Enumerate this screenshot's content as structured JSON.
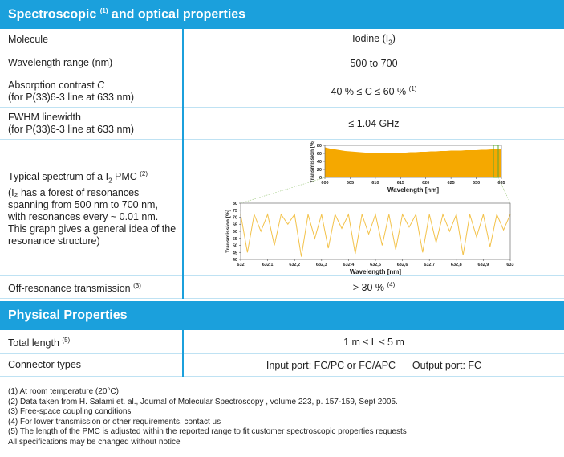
{
  "sections": [
    {
      "title": [
        {
          "text": "Spectroscopic "
        },
        {
          "text": "(1)",
          "style": "sup"
        },
        {
          "text": " and optical properties"
        }
      ],
      "rows": [
        {
          "label": [
            [
              {
                "text": "Molecule"
              }
            ]
          ],
          "value": [
            [
              {
                "text": "Iodine (I"
              },
              {
                "text": "2",
                "style": "sub"
              },
              {
                "text": ")"
              }
            ]
          ]
        },
        {
          "label": [
            [
              {
                "text": "Wavelength range (nm)"
              }
            ]
          ],
          "value": [
            [
              {
                "text": "500 to 700"
              }
            ]
          ]
        },
        {
          "label": [
            [
              {
                "text": "Absorption contrast "
              },
              {
                "text": "C",
                "style": "italic"
              }
            ],
            [
              {
                "text": "(for P(33)6-3 line at 633 nm)"
              }
            ]
          ],
          "value": [
            [
              {
                "text": "40 % ≤ C ≤ 60 % "
              },
              {
                "text": "(1)",
                "style": "sup"
              }
            ]
          ]
        },
        {
          "label": [
            [
              {
                "text": "FWHM linewidth"
              }
            ],
            [
              {
                "text": "(for P(33)6-3 line at 633 nm)"
              }
            ]
          ],
          "value": [
            [
              {
                "text": "≤ 1.04 GHz"
              }
            ]
          ]
        },
        {
          "label": [
            [
              {
                "text": "Typical spectrum of a I"
              },
              {
                "text": "2",
                "style": "sub"
              },
              {
                "text": " PMC "
              },
              {
                "text": "(2)",
                "style": "sup"
              }
            ],
            [
              {
                "text": "(I₂ has a forest of resonances"
              }
            ],
            [
              {
                "text": "spanning from 500 nm to 700 nm,"
              }
            ],
            [
              {
                "text": "with resonances every ~ 0.01 nm."
              }
            ],
            [
              {
                "text": "This graph gives a general idea of the"
              }
            ],
            [
              {
                "text": "resonance structure)"
              }
            ]
          ]
        },
        {
          "label": [
            [
              {
                "text": "Off-resonance transmission "
              },
              {
                "text": "(3)",
                "style": "sup"
              }
            ]
          ],
          "value": [
            [
              {
                "text": "> 30 % "
              },
              {
                "text": "(4)",
                "style": "sup"
              }
            ]
          ]
        }
      ]
    },
    {
      "title": [
        {
          "text": "Physical Properties"
        }
      ],
      "rows": [
        {
          "label": [
            [
              {
                "text": "Total length "
              },
              {
                "text": "(5)",
                "style": "sup"
              }
            ]
          ],
          "value": [
            [
              {
                "text": "1 m ≤ L ≤ 5 m"
              }
            ]
          ]
        },
        {
          "label": [
            [
              {
                "text": "Connector types"
              }
            ]
          ],
          "value": [
            [
              {
                "text": "Input port: FC/PC or FC/APC      Output port: FC"
              }
            ]
          ]
        }
      ]
    }
  ],
  "chart_data": [
    {
      "type": "area",
      "xlabel": "Wavelength [nm]",
      "ylabel": "Transmission [%]",
      "color": "#f5a800",
      "x": [
        600,
        601,
        602,
        603,
        604,
        605,
        606,
        607,
        608,
        609,
        610,
        611,
        612,
        613,
        614,
        615,
        616,
        617,
        618,
        619,
        620,
        621,
        622,
        623,
        624,
        625,
        626,
        627,
        628,
        629,
        630,
        631,
        632,
        633,
        634,
        635
      ],
      "values": [
        75,
        72,
        70,
        68,
        66,
        65,
        64,
        63,
        62,
        61,
        60,
        60,
        60,
        61,
        61,
        62,
        62,
        63,
        63,
        64,
        64,
        65,
        65,
        66,
        66,
        67,
        67,
        67,
        68,
        68,
        68,
        69,
        69,
        70,
        70,
        70
      ],
      "xlim": [
        600,
        635
      ],
      "ylim": [
        0,
        80
      ],
      "xticks": [
        600,
        605,
        610,
        615,
        620,
        625,
        630,
        635
      ],
      "yticks": [
        0,
        20,
        40,
        60,
        80
      ]
    },
    {
      "type": "line",
      "xlabel": "Wavelength [nm]",
      "ylabel": "Transmission [%]",
      "color": "#f3c24a",
      "x": [
        632,
        632.025,
        632.05,
        632.075,
        632.1,
        632.125,
        632.15,
        632.175,
        632.2,
        632.225,
        632.25,
        632.275,
        632.3,
        632.325,
        632.35,
        632.375,
        632.4,
        632.425,
        632.45,
        632.475,
        632.5,
        632.525,
        632.55,
        632.575,
        632.6,
        632.625,
        632.65,
        632.675,
        632.7,
        632.725,
        632.75,
        632.775,
        632.8,
        632.825,
        632.85,
        632.875,
        632.9,
        632.925,
        632.95,
        632.975,
        633
      ],
      "values": [
        72,
        45,
        72,
        60,
        72,
        50,
        72,
        65,
        72,
        42,
        72,
        55,
        72,
        48,
        72,
        62,
        72,
        44,
        72,
        58,
        72,
        50,
        72,
        47,
        72,
        63,
        72,
        45,
        72,
        52,
        72,
        60,
        72,
        43,
        72,
        56,
        72,
        49,
        72,
        61,
        72
      ],
      "xlim": [
        632,
        633
      ],
      "ylim": [
        40,
        80
      ],
      "xticks": [
        632,
        {
          "value": 632.1,
          "label": "632,1"
        },
        {
          "value": 632.2,
          "label": "632,2"
        },
        {
          "value": 632.3,
          "label": "632,3"
        },
        {
          "value": 632.4,
          "label": "632,4"
        },
        {
          "value": 632.5,
          "label": "632,5"
        },
        {
          "value": 632.6,
          "label": "632,6"
        },
        {
          "value": 632.7,
          "label": "632,7"
        },
        {
          "value": 632.8,
          "label": "632,8"
        },
        {
          "value": 632.9,
          "label": "632,9"
        },
        633
      ],
      "yticks": [
        40,
        45,
        50,
        55,
        60,
        65,
        70,
        75,
        80
      ]
    }
  ],
  "footnotes": [
    "(1) At room temperature (20°C)",
    "(2) Data taken from H. Salami et. al., Journal of Molecular Spectroscopy , volume 223, p. 157-159, Sept 2005.",
    "(3) Free-space coupling conditions",
    "(4) For lower transmission or other requirements, contact us",
    "(5) The length of the PMC is adjusted within the reported range to fit customer spectroscopic properties requests",
    "All specifications may be changed without notice"
  ]
}
